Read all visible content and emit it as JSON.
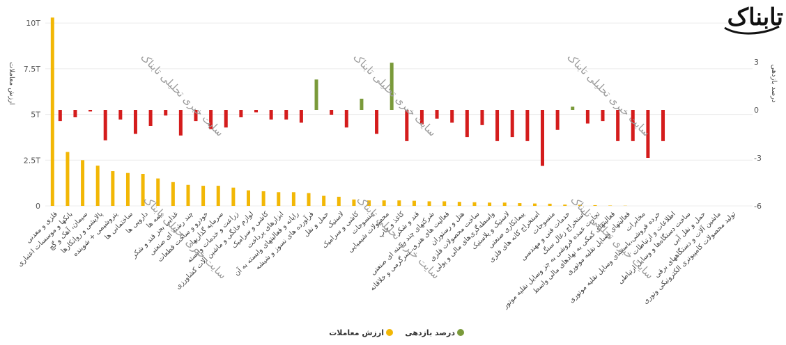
{
  "brand": {
    "logo_text": "تابناک",
    "watermark": "سایت خبری تحلیلی تابناک"
  },
  "chart_data": {
    "type": "bar",
    "title": "",
    "ylabel_left": "ارزش معاملات",
    "ylabel_right": "درصد بازدهی",
    "left_axis": {
      "ticks": [
        "0",
        "2.5T",
        "5T",
        "7.5T",
        "10T"
      ],
      "values": [
        0,
        2.5,
        5,
        7.5,
        10
      ],
      "range": [
        0,
        10.5
      ]
    },
    "right_axis": {
      "ticks": [
        "-6",
        "-3",
        "0",
        "3"
      ],
      "values": [
        -6,
        -3,
        0,
        3
      ],
      "range": [
        -6,
        6
      ]
    },
    "categories": [
      "فلزی و معدنی",
      "بانکها و موسسات اعتباری",
      "سیمان، آهک و گچ",
      "پالایشی و روانکارها",
      "پتروشیمی + شوینده",
      "ساختمانی ها",
      "دارویی ها",
      "بیمه ها",
      "غذایی بجز قند و شکر",
      "چند رشته ای صنعتی",
      "خودرو و ساخت قطعات",
      "سرمایه گذاریها",
      "زراعت و خدمات وابسته",
      "لوازم خانگی و ماشین آلات کشاورزی",
      "کاشی و سرامیک",
      "ابزارهای پرداخت",
      "رایانه و فعالیتهای وابسته به آن",
      "فرآورده های نسوز و شیشه",
      "حمل و نقل",
      "لاستیک",
      "کاشی و سرامیک",
      "منسوجات",
      "محصولات شیمیایی",
      "کاغذ و چاپ",
      "قند و شکر",
      "شرکتهای چند رشته ای صنعتی",
      "فعالیت های هنری، سرگرمی و خلاقانه",
      "هتل و رستوران",
      "ساخت محصولات فلزی",
      "واسطه‌گری‌های مالی و پولی",
      "لاستیک و پلاستیک",
      "پیمانکاری صنعتی",
      "استخراج کانه های فلزی",
      "منسوجات",
      "خدمات فنی و مهندسی",
      "استخراج زغال سنگ",
      "تجارت عمده فروشی به جز وسایل نقلیه موتور",
      "فعالیتهای کمکی به نهادهای مالی واسط",
      "فعالیتهای وسایل نقلیه موتوری",
      "مخابرات",
      "خرده فروشی،باستثنای وسایل نقلیه موتوری",
      "اطلاعات و ارتباطات",
      "ساخت دستگاه‌ها و وسایل ارتباطی",
      "حمل و نقل آبی",
      "ماشین آلات و دستگاههای برقی",
      "تولید محصولات کامپیوتری الکترونیکی ونوری"
    ],
    "series": [
      {
        "name": "ارزش معاملات",
        "color": "#f2b705",
        "axis": "left",
        "values": [
          10.3,
          2.95,
          2.5,
          2.2,
          1.9,
          1.8,
          1.75,
          1.5,
          1.3,
          1.15,
          1.1,
          1.1,
          1.0,
          0.85,
          0.8,
          0.75,
          0.75,
          0.7,
          0.55,
          0.5,
          0.35,
          0.3,
          0.3,
          0.3,
          0.28,
          0.25,
          0.25,
          0.22,
          0.2,
          0.18,
          0.18,
          0.15,
          0.13,
          0.12,
          0.07,
          0.06,
          0.04,
          0.02,
          0.01,
          0,
          0,
          0,
          0,
          0,
          0,
          0
        ]
      },
      {
        "name": "درصد بازدهی",
        "color_positive": "#7a9a3a",
        "color_negative": "#d41c1c",
        "axis": "right",
        "values": [
          -0.7,
          -0.45,
          -0.1,
          -1.9,
          -0.6,
          -1.5,
          -1.0,
          -0.35,
          -1.6,
          -0.7,
          -1.2,
          -1.1,
          -0.45,
          -0.15,
          -0.6,
          -0.6,
          -0.8,
          1.9,
          -0.3,
          -1.1,
          0.7,
          -1.5,
          2.95,
          -1.95,
          -0.9,
          -0.55,
          -0.8,
          -1.7,
          -0.95,
          -1.95,
          -1.7,
          -1.95,
          -3.5,
          -1.25,
          0.2,
          -0.85,
          -0.7,
          -1.95,
          -1.95,
          -3.0,
          -1.95,
          0,
          0,
          0,
          0,
          0
        ]
      }
    ],
    "legend": {
      "position": "bottom-center",
      "entries": [
        "درصد بازدهی",
        "ارزش معاملات"
      ]
    },
    "grid": true
  }
}
